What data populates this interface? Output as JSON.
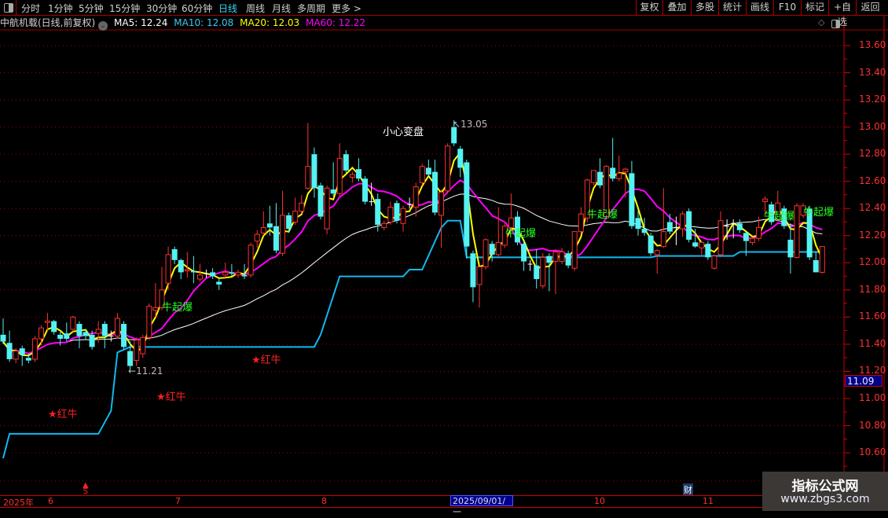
{
  "toolbar": {
    "periods": [
      "分时",
      "1分钟",
      "5分钟",
      "15分钟",
      "30分钟",
      "60分钟",
      "日线",
      "周线",
      "月线",
      "多周期",
      "更多 >"
    ],
    "active_period": "日线",
    "right_buttons": [
      "复权",
      "叠加",
      "多股",
      "统计",
      "画线",
      "F10",
      "标记",
      "+自选",
      "返回"
    ]
  },
  "info": {
    "title": "中航机载(日线,前复权)",
    "ma5": "MA5: 12.24",
    "ma10": "MA10: 12.08",
    "ma20": "MA20: 12.03",
    "ma60": "MA60: 12.22"
  },
  "colors": {
    "up": "#ff3030",
    "down": "#54f2f2",
    "ma_fast": "#ffff00",
    "ma_mid": "#ff00ff",
    "ma_slow": "#ffffff",
    "support": "#10b8f0",
    "grid": "#a00000",
    "signal": "#22ff22",
    "ma5": "#ffffff",
    "ma10": "#38c8f0",
    "ma20": "#ffff00",
    "ma60": "#ff00ff"
  },
  "chart_data": {
    "type": "candlestick",
    "ylim": [
      10.5,
      13.7
    ],
    "y_ticks": [
      "13.60",
      "13.40",
      "13.20",
      "13.00",
      "12.80",
      "12.60",
      "12.40",
      "12.20",
      "12.00",
      "11.80",
      "11.60",
      "11.40",
      "11.20",
      "11.00",
      "10.80",
      "10.60"
    ],
    "current_price_label": "11.09",
    "x_labels": [
      "2025年",
      "6",
      "7",
      "8",
      "10",
      "11"
    ],
    "x_highlight": "2025/09/01/一",
    "candles": [
      [
        11.47,
        11.59,
        11.4,
        11.42
      ],
      [
        11.41,
        11.5,
        11.27,
        11.29
      ],
      [
        11.29,
        11.37,
        11.26,
        11.35
      ],
      [
        11.37,
        11.39,
        11.24,
        11.32
      ],
      [
        11.3,
        11.33,
        11.26,
        11.28
      ],
      [
        11.29,
        11.46,
        11.27,
        11.44
      ],
      [
        11.44,
        11.54,
        11.39,
        11.52
      ],
      [
        11.56,
        11.63,
        11.5,
        11.57
      ],
      [
        11.57,
        11.58,
        11.47,
        11.49
      ],
      [
        11.47,
        11.49,
        11.39,
        11.44
      ],
      [
        11.48,
        11.56,
        11.42,
        11.44
      ],
      [
        11.51,
        11.61,
        11.49,
        11.6
      ],
      [
        11.55,
        11.57,
        11.37,
        11.46
      ],
      [
        11.49,
        11.51,
        11.44,
        11.46
      ],
      [
        11.47,
        11.5,
        11.36,
        11.38
      ],
      [
        11.48,
        11.57,
        11.41,
        11.51
      ],
      [
        11.55,
        11.57,
        11.37,
        11.46
      ],
      [
        11.46,
        11.5,
        11.42,
        11.46
      ],
      [
        11.46,
        11.63,
        11.44,
        11.59
      ],
      [
        11.55,
        11.57,
        11.36,
        11.38
      ],
      [
        11.35,
        11.42,
        11.21,
        11.24
      ],
      [
        11.28,
        11.45,
        11.24,
        11.43
      ],
      [
        11.33,
        11.47,
        11.3,
        11.45
      ],
      [
        11.45,
        11.7,
        11.43,
        11.68
      ],
      [
        11.65,
        11.85,
        11.6,
        11.67
      ],
      [
        11.67,
        11.97,
        11.65,
        11.8
      ],
      [
        11.85,
        12.12,
        11.8,
        12.06
      ],
      [
        12.1,
        12.12,
        11.99,
        12.02
      ],
      [
        12.02,
        12.03,
        11.88,
        11.93
      ],
      [
        11.94,
        12.08,
        11.89,
        11.95
      ],
      [
        11.94,
        12.05,
        11.85,
        11.93
      ],
      [
        11.88,
        11.99,
        11.86,
        11.91
      ],
      [
        11.92,
        11.95,
        11.89,
        11.92
      ],
      [
        11.93,
        11.96,
        11.88,
        11.9
      ],
      [
        11.86,
        11.88,
        11.8,
        11.84
      ],
      [
        11.91,
        12.0,
        11.89,
        11.93
      ],
      [
        11.93,
        11.99,
        11.9,
        11.92
      ],
      [
        11.91,
        11.95,
        11.89,
        11.93
      ],
      [
        11.91,
        11.99,
        11.88,
        11.9
      ],
      [
        11.91,
        12.15,
        11.89,
        12.13
      ],
      [
        12.16,
        12.24,
        12.11,
        12.21
      ],
      [
        12.22,
        12.38,
        12.2,
        12.26
      ],
      [
        12.29,
        12.42,
        12.2,
        12.26
      ],
      [
        12.27,
        12.44,
        12.07,
        12.09
      ],
      [
        12.07,
        12.53,
        12.05,
        12.35
      ],
      [
        12.35,
        12.37,
        12.22,
        12.25
      ],
      [
        12.3,
        12.48,
        12.28,
        12.38
      ],
      [
        12.38,
        12.5,
        12.36,
        12.44
      ],
      [
        12.55,
        13.03,
        12.54,
        12.71
      ],
      [
        12.8,
        12.85,
        12.48,
        12.55
      ],
      [
        12.57,
        12.59,
        12.32,
        12.34
      ],
      [
        12.25,
        12.57,
        12.21,
        12.55
      ],
      [
        12.54,
        12.74,
        12.49,
        12.51
      ],
      [
        12.51,
        12.88,
        12.49,
        12.77
      ],
      [
        12.8,
        12.83,
        12.66,
        12.68
      ],
      [
        12.63,
        12.67,
        12.59,
        12.65
      ],
      [
        12.69,
        12.77,
        12.6,
        12.62
      ],
      [
        12.62,
        12.64,
        12.43,
        12.45
      ],
      [
        12.45,
        12.59,
        12.42,
        12.45
      ],
      [
        12.47,
        12.51,
        12.23,
        12.28
      ],
      [
        12.26,
        12.31,
        12.24,
        12.29
      ],
      [
        12.3,
        12.45,
        12.28,
        12.41
      ],
      [
        12.44,
        12.46,
        12.29,
        12.31
      ],
      [
        12.29,
        12.42,
        12.23,
        12.4
      ],
      [
        12.43,
        12.48,
        12.4,
        12.43
      ],
      [
        12.41,
        12.59,
        12.34,
        12.56
      ],
      [
        12.59,
        12.73,
        12.57,
        12.71
      ],
      [
        12.7,
        12.76,
        12.63,
        12.65
      ],
      [
        12.67,
        12.76,
        12.35,
        12.37
      ],
      [
        12.35,
        12.54,
        12.11,
        12.52
      ],
      [
        12.53,
        12.88,
        12.51,
        12.86
      ],
      [
        13.0,
        13.05,
        12.86,
        12.88
      ],
      [
        12.84,
        12.86,
        12.63,
        12.7
      ],
      [
        12.74,
        12.76,
        12.03,
        12.12
      ],
      [
        12.07,
        12.09,
        11.71,
        11.82
      ],
      [
        11.84,
        11.97,
        11.67,
        11.97
      ],
      [
        11.97,
        12.18,
        11.95,
        12.17
      ],
      [
        12.14,
        12.16,
        12.01,
        12.06
      ],
      [
        12.06,
        12.41,
        12.04,
        12.15
      ],
      [
        12.13,
        12.29,
        12.11,
        12.27
      ],
      [
        12.26,
        12.51,
        12.24,
        12.33
      ],
      [
        12.34,
        12.38,
        12.13,
        12.15
      ],
      [
        12.14,
        12.16,
        11.94,
        12.01
      ],
      [
        11.99,
        12.02,
        11.94,
        11.99
      ],
      [
        11.98,
        12.1,
        11.81,
        11.88
      ],
      [
        11.83,
        12.07,
        11.81,
        12.04
      ],
      [
        12.05,
        12.07,
        11.79,
        12.0
      ],
      [
        12.01,
        12.1,
        11.77,
        12.08
      ],
      [
        12.01,
        12.11,
        11.99,
        12.08
      ],
      [
        12.07,
        12.09,
        11.96,
        11.98
      ],
      [
        11.96,
        12.23,
        11.94,
        12.23
      ],
      [
        12.23,
        12.41,
        12.21,
        12.36
      ],
      [
        12.33,
        12.62,
        12.3,
        12.61
      ],
      [
        12.59,
        12.68,
        12.57,
        12.68
      ],
      [
        12.67,
        12.77,
        12.55,
        12.57
      ],
      [
        12.34,
        12.72,
        12.32,
        12.71
      ],
      [
        12.7,
        12.92,
        12.6,
        12.62
      ],
      [
        12.62,
        12.79,
        12.6,
        12.66
      ],
      [
        12.67,
        12.7,
        12.48,
        12.69
      ],
      [
        12.66,
        12.75,
        12.25,
        12.27
      ],
      [
        12.33,
        12.39,
        12.2,
        12.25
      ],
      [
        12.25,
        12.33,
        12.2,
        12.22
      ],
      [
        12.2,
        12.22,
        12.05,
        12.07
      ],
      [
        12.06,
        12.1,
        11.92,
        12.09
      ],
      [
        12.12,
        12.55,
        12.11,
        12.23
      ],
      [
        12.3,
        12.36,
        12.21,
        12.23
      ],
      [
        12.26,
        12.34,
        12.13,
        12.26
      ],
      [
        12.25,
        12.38,
        12.19,
        12.36
      ],
      [
        12.38,
        12.4,
        12.15,
        12.17
      ],
      [
        12.15,
        12.25,
        12.11,
        12.12
      ],
      [
        12.11,
        12.16,
        12.05,
        12.15
      ],
      [
        12.14,
        12.16,
        12.02,
        12.04
      ],
      [
        11.96,
        12.06,
        11.95,
        12.05
      ],
      [
        12.06,
        12.38,
        12.04,
        12.31
      ],
      [
        12.27,
        12.32,
        12.17,
        12.27
      ],
      [
        12.29,
        12.32,
        12.18,
        12.29
      ],
      [
        12.29,
        12.32,
        12.22,
        12.24
      ],
      [
        12.22,
        12.23,
        12.05,
        12.16
      ],
      [
        12.15,
        12.19,
        12.13,
        12.18
      ],
      [
        12.18,
        12.34,
        12.16,
        12.26
      ],
      [
        12.45,
        12.49,
        12.35,
        12.47
      ],
      [
        12.43,
        12.45,
        12.28,
        12.3
      ],
      [
        12.32,
        12.53,
        12.3,
        12.44
      ],
      [
        12.4,
        12.42,
        12.25,
        12.27
      ],
      [
        12.17,
        12.29,
        11.92,
        12.04
      ],
      [
        12.04,
        12.44,
        12.03,
        12.42
      ],
      [
        12.35,
        12.44,
        12.33,
        12.42
      ],
      [
        12.4,
        12.42,
        12.02,
        12.04
      ],
      [
        12.02,
        12.08,
        11.93,
        11.93
      ],
      [
        11.93,
        12.12,
        11.92,
        12.12
      ]
    ],
    "support_line": [
      [
        0,
        10.56
      ],
      [
        1,
        10.74
      ],
      [
        15,
        10.74
      ],
      [
        17,
        10.91
      ],
      [
        18,
        11.34
      ],
      [
        20,
        11.38
      ],
      [
        49,
        11.38
      ],
      [
        50,
        11.47
      ],
      [
        53,
        11.9
      ],
      [
        63,
        11.9
      ],
      [
        64,
        11.95
      ],
      [
        66,
        11.95
      ],
      [
        69,
        12.26
      ],
      [
        70,
        12.31
      ],
      [
        72,
        12.31
      ],
      [
        73,
        12.04
      ],
      [
        102,
        12.04
      ],
      [
        103,
        12.05
      ],
      [
        115,
        12.05
      ],
      [
        116,
        12.08
      ],
      [
        129,
        12.08
      ]
    ],
    "annotations": {
      "high_label": "13.05",
      "low_label": "11.21",
      "warning": "小心变盘",
      "signal_up": "牛起爆",
      "red_bull": "★红牛",
      "s_marker": "S",
      "fin_marker": "财"
    }
  },
  "watermark": {
    "line1": "指标公式网",
    "line2": "www.zbgs3.com"
  }
}
